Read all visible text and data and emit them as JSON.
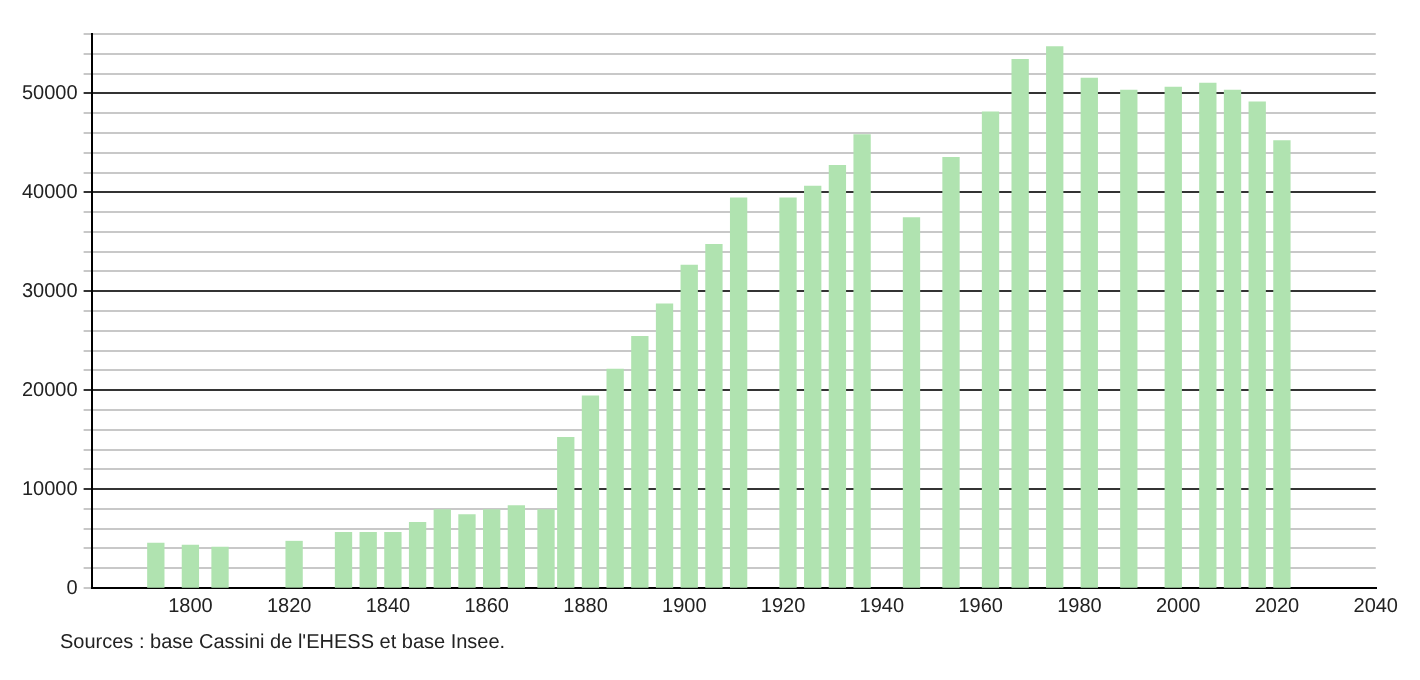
{
  "chart_data": {
    "type": "bar",
    "x": [
      1793,
      1800,
      1806,
      1821,
      1831,
      1836,
      1841,
      1846,
      1851,
      1856,
      1861,
      1866,
      1872,
      1876,
      1881,
      1886,
      1891,
      1896,
      1901,
      1906,
      1911,
      1921,
      1926,
      1931,
      1936,
      1946,
      1954,
      1962,
      1968,
      1975,
      1982,
      1990,
      1999,
      2006,
      2011,
      2016,
      2021
    ],
    "values": [
      4500,
      4300,
      4100,
      4700,
      5600,
      5600,
      5600,
      6600,
      7900,
      7400,
      7900,
      8300,
      7900,
      15200,
      19400,
      22100,
      25400,
      28700,
      32600,
      34700,
      39400,
      39400,
      40600,
      42700,
      45800,
      37400,
      43500,
      48100,
      53400,
      54700,
      51500,
      50300,
      50600,
      51000,
      50300,
      49100,
      45200
    ],
    "color": "#b0e3b0",
    "xlim": [
      1780,
      2040
    ],
    "xticks": [
      1800,
      1820,
      1840,
      1860,
      1880,
      1900,
      1920,
      1940,
      1960,
      1980,
      2000,
      2020,
      2040
    ],
    "ylim": [
      0,
      56000
    ],
    "yticks": [
      0,
      {
        "value": 2000,
        "label": null
      },
      {
        "value": 4000,
        "label": null
      },
      {
        "value": 6000,
        "label": null
      },
      {
        "value": 8000,
        "label": null
      },
      10000,
      {
        "value": 12000,
        "label": null
      },
      {
        "value": 14000,
        "label": null
      },
      {
        "value": 16000,
        "label": null
      },
      {
        "value": 18000,
        "label": null
      },
      20000,
      {
        "value": 22000,
        "label": null
      },
      {
        "value": 24000,
        "label": null
      },
      {
        "value": 26000,
        "label": null
      },
      {
        "value": 28000,
        "label": null
      },
      30000,
      {
        "value": 32000,
        "label": null
      },
      {
        "value": 34000,
        "label": null
      },
      {
        "value": 36000,
        "label": null
      },
      {
        "value": 38000,
        "label": null
      },
      40000,
      {
        "value": 42000,
        "label": null
      },
      {
        "value": 44000,
        "label": null
      },
      {
        "value": 46000,
        "label": null
      },
      {
        "value": 48000,
        "label": null
      },
      50000,
      {
        "value": 52000,
        "label": null
      },
      {
        "value": 54000,
        "label": null
      },
      {
        "value": 56000,
        "label": null
      }
    ],
    "grid": "y",
    "annotations": [
      "Sources : base Cassini de l'EHESS et base Insee."
    ]
  }
}
